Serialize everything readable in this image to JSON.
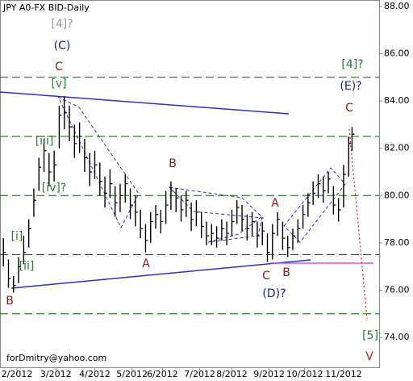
{
  "chart_data": {
    "type": "ohlc",
    "title": "JPY A0-FX BID-Daily",
    "footer": "forDmitry@yahoo.com",
    "bar_color": "#000000",
    "x": [
      0,
      3,
      6,
      9,
      12,
      15,
      18,
      21,
      24,
      27,
      30,
      33,
      36,
      39,
      42,
      45,
      48,
      51,
      54,
      57,
      60,
      63,
      66,
      69,
      72,
      75,
      78,
      81,
      84,
      87,
      90,
      93,
      96,
      99,
      102,
      105,
      108,
      111,
      114,
      117,
      120,
      123,
      126,
      129,
      132,
      135,
      138,
      141,
      144,
      147,
      150,
      153,
      156,
      159,
      162,
      165,
      168,
      171,
      174,
      177,
      180,
      183,
      186,
      189,
      192,
      195,
      198,
      201,
      204,
      206
    ],
    "high": [
      78.2,
      77.3,
      76.6,
      77.4,
      78.3,
      79.0,
      80.3,
      81.6,
      82.4,
      81.8,
      81.9,
      83.8,
      84.2,
      83.8,
      83.0,
      83.1,
      82.4,
      81.8,
      81.9,
      81.4,
      80.8,
      81.1,
      80.4,
      80.5,
      80.9,
      80.3,
      80.0,
      79.4,
      78.8,
      79.3,
      79.6,
      79.4,
      80.2,
      80.6,
      80.3,
      80.0,
      80.2,
      79.7,
      79.8,
      79.3,
      78.9,
      78.8,
      78.7,
      79.0,
      78.9,
      79.4,
      79.8,
      79.6,
      79.2,
      79.3,
      78.9,
      78.9,
      78.4,
      78.8,
      79.3,
      78.9,
      78.3,
      78.6,
      79.0,
      79.6,
      80.1,
      80.6,
      80.9,
      80.8,
      81.0,
      80.4,
      79.9,
      81.3,
      82.5,
      82.9
    ],
    "low": [
      77.0,
      76.1,
      75.9,
      76.3,
      77.1,
      77.8,
      79.1,
      80.2,
      81.0,
      80.4,
      80.6,
      82.0,
      82.8,
      82.3,
      81.6,
      81.8,
      81.0,
      80.4,
      80.7,
      80.0,
      79.5,
      79.9,
      79.1,
      79.3,
      79.7,
      79.0,
      78.7,
      78.2,
      77.6,
      78.0,
      78.6,
      78.4,
      78.8,
      79.4,
      79.3,
      78.9,
      79.1,
      78.5,
      78.7,
      78.2,
      77.9,
      77.9,
      77.8,
      78.1,
      77.9,
      78.3,
      78.8,
      78.5,
      78.1,
      78.3,
      77.8,
      77.9,
      77.2,
      77.3,
      78.3,
      77.7,
      77.4,
      77.7,
      78.0,
      78.6,
      79.1,
      79.6,
      79.9,
      79.7,
      80.1,
      79.2,
      78.9,
      79.5,
      80.8,
      81.9
    ],
    "close": [
      77.6,
      76.5,
      76.2,
      77.0,
      77.6,
      78.6,
      79.8,
      81.2,
      81.9,
      81.0,
      81.3,
      83.4,
      83.5,
      82.9,
      82.2,
      82.5,
      81.6,
      81.0,
      81.3,
      80.6,
      80.1,
      80.5,
      79.7,
      80.0,
      80.5,
      79.6,
      79.3,
      78.6,
      78.1,
      78.9,
      79.2,
      78.9,
      79.6,
      80.2,
      79.9,
      79.4,
      79.8,
      79.0,
      79.3,
      78.7,
      78.3,
      78.4,
      78.2,
      78.6,
      78.4,
      78.9,
      79.5,
      79.0,
      78.6,
      78.9,
      78.3,
      78.5,
      77.6,
      78.4,
      79.0,
      78.2,
      77.8,
      78.3,
      78.6,
      79.2,
      79.7,
      80.1,
      80.5,
      80.2,
      80.7,
      79.6,
      79.4,
      80.9,
      82.2,
      82.6
    ],
    "xlim": [
      -2,
      222
    ],
    "ylim": [
      72.74,
      88.27
    ],
    "xticks": [
      {
        "value": 8,
        "label": "2/2012"
      },
      {
        "value": 31,
        "label": "3/2012"
      },
      {
        "value": 54,
        "label": "4/2012"
      },
      {
        "value": 76,
        "label": "5/2012"
      },
      {
        "value": 94,
        "label": "6/2012"
      },
      {
        "value": 116,
        "label": "7/2012"
      },
      {
        "value": 135,
        "label": "8/2012"
      },
      {
        "value": 157,
        "label": "9/2012"
      },
      {
        "value": 178,
        "label": "10/2012"
      },
      {
        "value": 201,
        "label": "11/2012"
      }
    ],
    "yticks": [
      {
        "value": 74,
        "label": "74.00"
      },
      {
        "value": 76,
        "label": "76.00"
      },
      {
        "value": 78,
        "label": "78.00"
      },
      {
        "value": 80,
        "label": "80.00"
      },
      {
        "value": 82,
        "label": "82.00"
      },
      {
        "value": 84,
        "label": "84.00"
      },
      {
        "value": 86,
        "label": "86.00"
      },
      {
        "value": 88,
        "label": "88.00"
      }
    ],
    "levels": [
      85,
      82.5,
      80,
      77.5,
      75
    ],
    "level_color": "#006400",
    "annotations": [
      {
        "text": "[4]?",
        "color": "#999999"
      },
      {
        "text": "(C)",
        "color": "#1a237e"
      },
      {
        "text": "C",
        "color": "#8b1a1a"
      },
      {
        "text": "[v]",
        "color": "#2e7d32"
      },
      {
        "text": "[iii]",
        "color": "#2e7d32"
      },
      {
        "text": "[iv]?",
        "color": "#2e7d32"
      },
      {
        "text": "[i]",
        "color": "#2e7d32"
      },
      {
        "text": "[ii]",
        "color": "#2e7d32"
      },
      {
        "text": "B",
        "color": "#8b1a1a"
      },
      {
        "text": "A",
        "color": "#8b1a1a"
      },
      {
        "text": "B",
        "color": "#8b1a1a"
      },
      {
        "text": "A",
        "color": "#8b1a1a"
      },
      {
        "text": "C",
        "color": "#8b1a1a"
      },
      {
        "text": "B",
        "color": "#8b1a1a"
      },
      {
        "text": "(D)?",
        "color": "#1a237e"
      },
      {
        "text": "[4]?",
        "color": "#2e7d32"
      },
      {
        "text": "(E)?",
        "color": "#1a237e"
      },
      {
        "text": "C",
        "color": "#8b1a1a"
      },
      {
        "text": "[5]",
        "color": "#2e7d32"
      },
      {
        "text": "V",
        "color": "#b71c1c"
      }
    ]
  }
}
